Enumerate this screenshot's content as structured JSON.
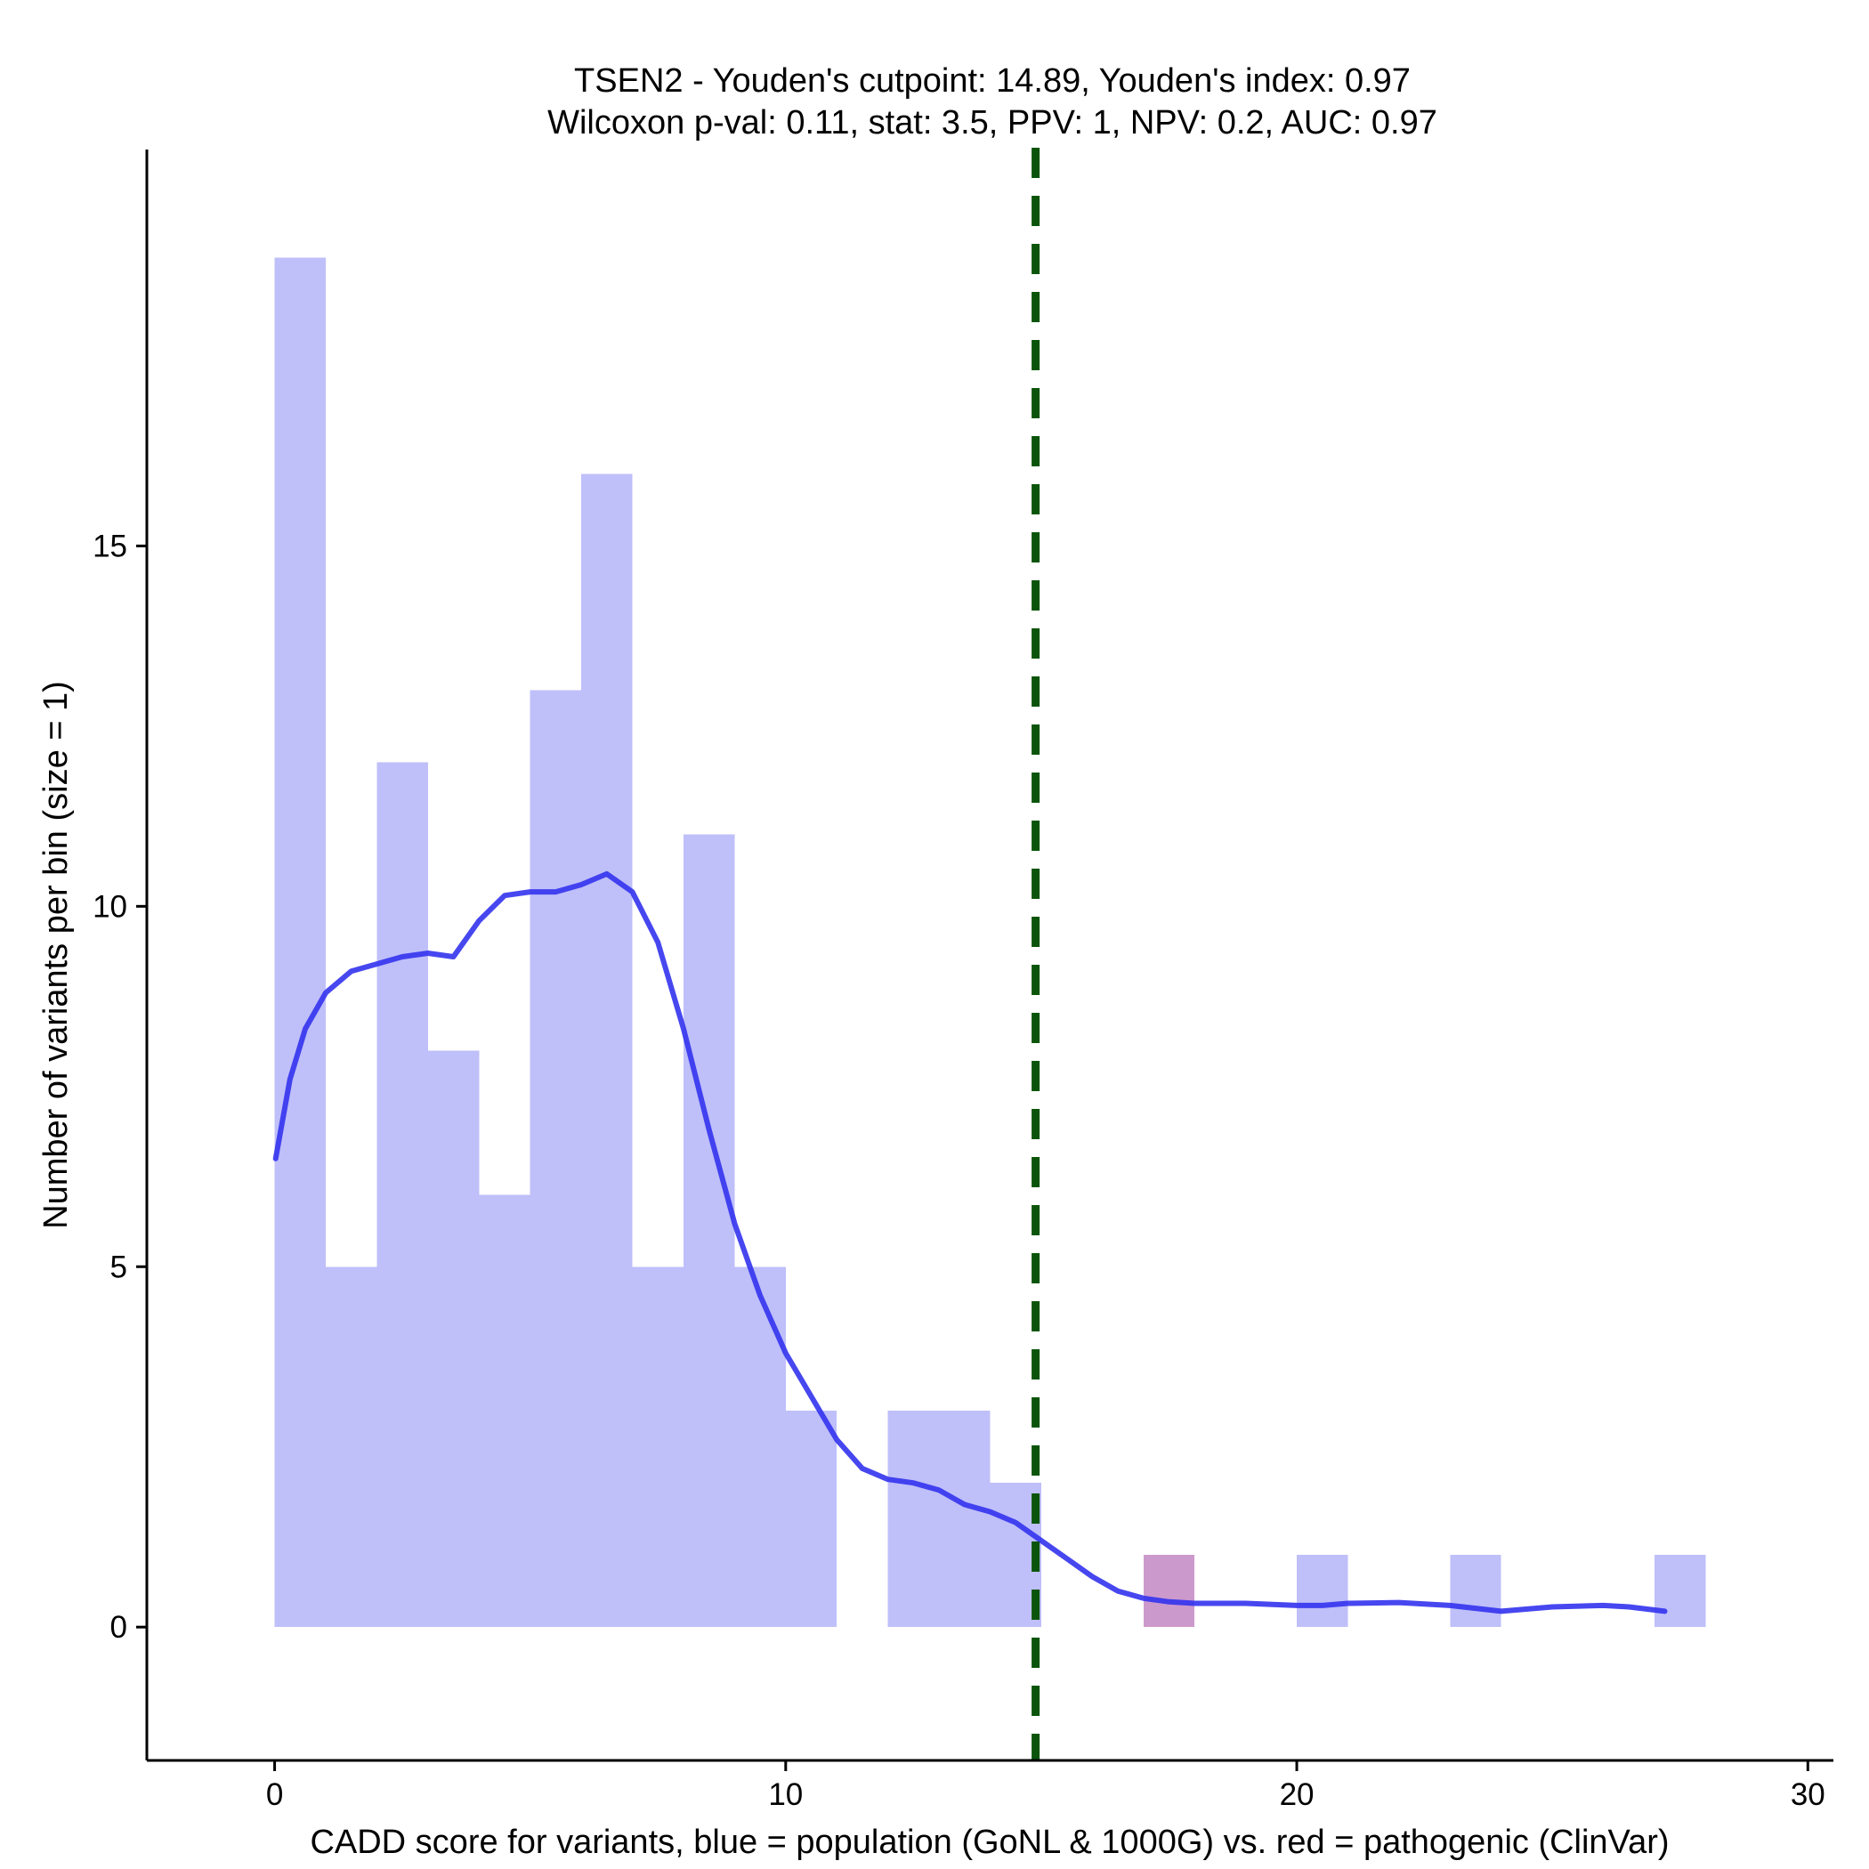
{
  "chart_data": {
    "type": "bar",
    "title_line1": "TSEN2 - Youden's cutpoint: 14.89, Youden's index: 0.97",
    "title_line2": "Wilcoxon p-val: 0.11, stat: 3.5, PPV: 1, NPV: 0.2, AUC: 0.97",
    "xlabel": "CADD score for variants, blue = population (GoNL & 1000G) vs. red = pathogenic (ClinVar)",
    "ylabel": "Number of variants per bin (size = 1)",
    "xlim": [
      -2.5,
      30.5
    ],
    "ylim": [
      -1.85,
      20.5
    ],
    "xticks": [
      0,
      10,
      20,
      30
    ],
    "xtick_labels": [
      "0",
      "10",
      "20",
      "30"
    ],
    "yticks": [
      0,
      5,
      10,
      15
    ],
    "ytick_labels": [
      "0",
      "5",
      "10",
      "15"
    ],
    "bin_size": 1,
    "series": [
      {
        "name": "population (GoNL & 1000G)",
        "color": "#bfbffa",
        "bins": [
          {
            "x0": 0,
            "count": 19
          },
          {
            "x0": 1,
            "count": 5
          },
          {
            "x0": 2,
            "count": 12
          },
          {
            "x0": 3,
            "count": 8
          },
          {
            "x0": 4,
            "count": 6
          },
          {
            "x0": 5,
            "count": 13
          },
          {
            "x0": 6,
            "count": 16
          },
          {
            "x0": 7,
            "count": 5
          },
          {
            "x0": 8,
            "count": 11
          },
          {
            "x0": 9,
            "count": 5
          },
          {
            "x0": 10,
            "count": 3
          },
          {
            "x0": 12,
            "count": 3
          },
          {
            "x0": 13,
            "count": 3
          },
          {
            "x0": 14,
            "count": 2
          },
          {
            "x0": 20,
            "count": 1
          },
          {
            "x0": 23,
            "count": 1
          },
          {
            "x0": 27,
            "count": 1
          }
        ]
      },
      {
        "name": "pathogenic (ClinVar)",
        "color": "#cc99cc",
        "bins": [
          {
            "x0": 17,
            "count": 1
          }
        ]
      }
    ],
    "density_curve": {
      "name": "population density",
      "color": "#3333ee",
      "x": [
        0.02,
        0.3,
        0.6,
        1.0,
        1.5,
        2.0,
        2.5,
        3.0,
        3.5,
        4.0,
        4.5,
        5.0,
        5.5,
        6.0,
        6.5,
        7.0,
        7.5,
        8.0,
        8.5,
        9.0,
        9.5,
        10.0,
        10.5,
        11.0,
        11.5,
        12.0,
        12.5,
        13.0,
        13.5,
        14.0,
        14.5,
        15.0,
        15.5,
        16.0,
        16.5,
        17.0,
        17.5,
        18.0,
        19.0,
        20.0,
        20.5,
        21.0,
        22.0,
        23.0,
        23.5,
        24.0,
        25.0,
        26.0,
        26.5,
        27.2
      ],
      "y": [
        6.5,
        7.6,
        8.3,
        8.8,
        9.1,
        9.2,
        9.3,
        9.35,
        9.3,
        9.8,
        10.15,
        10.2,
        10.2,
        10.3,
        10.45,
        10.2,
        9.5,
        8.3,
        6.9,
        5.6,
        4.6,
        3.8,
        3.2,
        2.6,
        2.2,
        2.05,
        2.0,
        1.9,
        1.7,
        1.6,
        1.45,
        1.2,
        0.95,
        0.7,
        0.5,
        0.4,
        0.35,
        0.33,
        0.33,
        0.3,
        0.3,
        0.33,
        0.34,
        0.3,
        0.26,
        0.22,
        0.28,
        0.3,
        0.28,
        0.22
      ]
    },
    "cutpoint": {
      "x": 14.89,
      "label": "Youden's cutpoint",
      "color": "#0b540b"
    }
  }
}
